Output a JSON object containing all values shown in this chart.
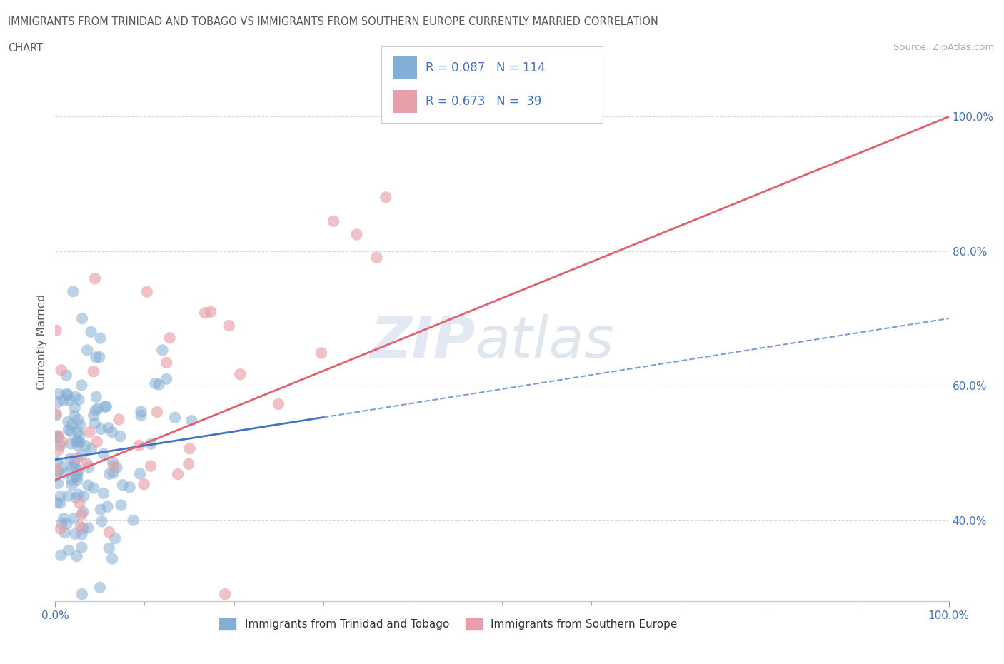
{
  "title_line1": "IMMIGRANTS FROM TRINIDAD AND TOBAGO VS IMMIGRANTS FROM SOUTHERN EUROPE CURRENTLY MARRIED CORRELATION",
  "title_line2": "CHART",
  "source_text": "Source: ZipAtlas.com",
  "ylabel": "Currently Married",
  "x_min": 0.0,
  "x_max": 1.0,
  "y_min": 0.28,
  "y_max": 1.05,
  "blue_color": "#85aed4",
  "pink_color": "#e8a0a8",
  "blue_line_color": "#4472c4",
  "pink_line_color": "#e06070",
  "r_blue": 0.087,
  "n_blue": 114,
  "r_pink": 0.673,
  "n_pink": 39,
  "watermark_zip": "ZIP",
  "watermark_atlas": "atlas",
  "legend_label_blue": "Immigrants from Trinidad and Tobago",
  "legend_label_pink": "Immigrants from Southern Europe",
  "title_color": "#595959",
  "axis_label_color": "#595959",
  "tick_label_color": "#4472c4",
  "legend_text_color": "#4472c4",
  "grid_color": "#d9d9d9",
  "source_color": "#aaaaaa"
}
